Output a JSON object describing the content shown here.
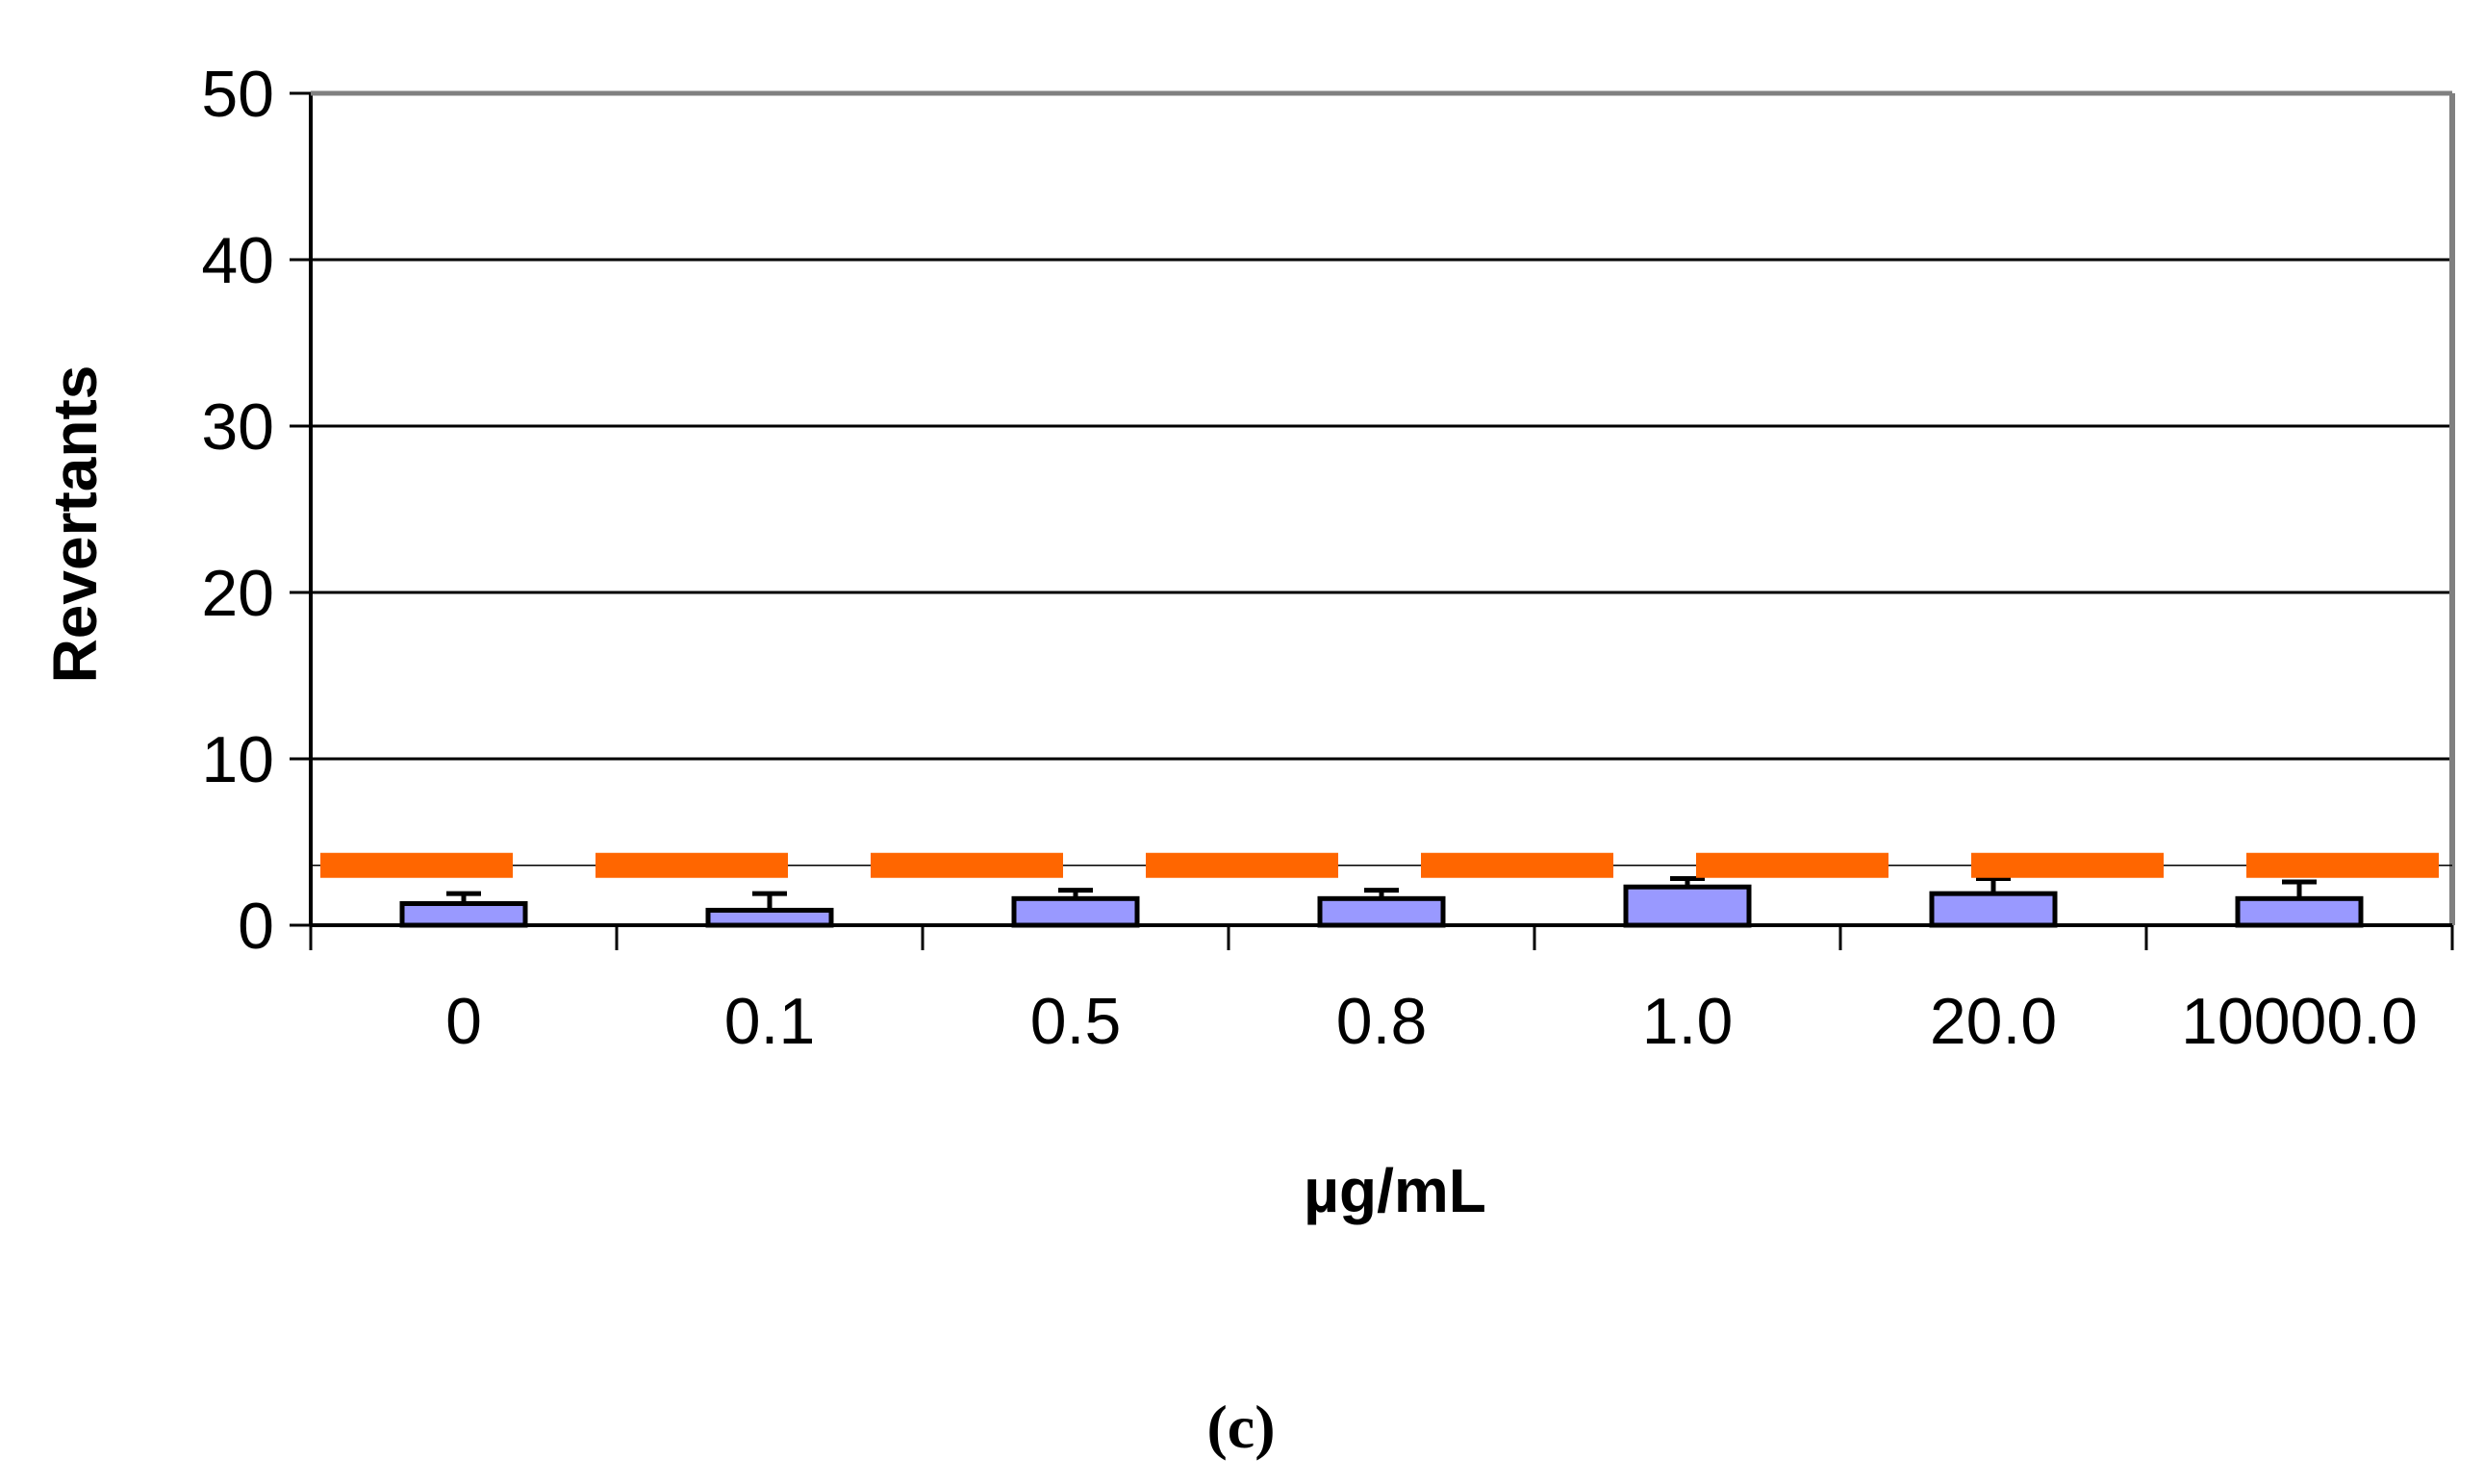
{
  "chart_data": {
    "type": "bar",
    "categories": [
      "0",
      "0.1",
      "0.5",
      "0.8",
      "1.0",
      "20.0",
      "10000.0"
    ],
    "series": [
      {
        "values": [
          1.3,
          0.9,
          1.6,
          1.6,
          2.3,
          1.9,
          1.6
        ],
        "errors": [
          0.6,
          1.0,
          0.5,
          0.5,
          0.5,
          0.9,
          1.0
        ]
      }
    ],
    "reference_line": {
      "value": 3.6,
      "style": "dashed"
    },
    "xlabel": "µg/mL",
    "ylabel": "Revertants",
    "ylim": [
      0,
      50
    ],
    "yticks": [
      "0",
      "10",
      "20",
      "30",
      "40",
      "50"
    ],
    "grid": true,
    "legend": "none",
    "panel_label": "(c)",
    "colors": {
      "bar_fill": "#9999ff",
      "bar_stroke": "#000000",
      "reference_line": "#ff6600",
      "gridline": "#000000",
      "frame_right": "#808080"
    }
  }
}
